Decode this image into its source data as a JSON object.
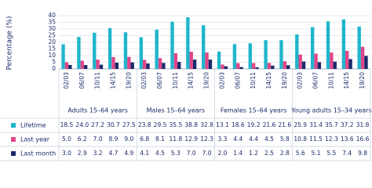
{
  "chart_data": {
    "type": "bar",
    "y_label": "Percentage (%)",
    "groups": [
      {
        "name": "Adults 15–64 years",
        "categories": [
          "02/03",
          "06/07",
          "10/11",
          "14/15",
          "19/20"
        ]
      },
      {
        "name": "Males 15–64 years",
        "categories": [
          "02/03",
          "06/07",
          "10/11",
          "14/15",
          "19/20"
        ]
      },
      {
        "name": "Females 15–64 years",
        "categories": [
          "02/03",
          "06/07",
          "10/11",
          "14/15",
          "19/20"
        ]
      },
      {
        "name": "Young adults 15–34 years",
        "categories": [
          "02/03",
          "06/07",
          "10/11",
          "14/15",
          "19/20"
        ]
      }
    ],
    "series": [
      {
        "name": "Lifetime",
        "color": "#1fb5cc",
        "values": [
          18.5,
          24.0,
          27.2,
          30.7,
          27.5,
          23.8,
          29.5,
          35.5,
          38.8,
          32.8,
          13.1,
          18.6,
          19.2,
          21.6,
          21.6,
          25.9,
          31.4,
          35.7,
          37.2,
          31.8
        ],
        "value_labels": [
          "18.5",
          "24.0",
          "27.2",
          "30.7",
          "27.5",
          "23.8",
          "29.5",
          "35.5",
          "38.8",
          "32.8",
          "13.1",
          "18.6",
          "19.2",
          "21.6",
          "21.6",
          "25.9",
          "31.4",
          "35.7",
          "37.2",
          "31.8"
        ]
      },
      {
        "name": "Last year",
        "color": "#e0468a",
        "values": [
          5.0,
          6.2,
          7.0,
          8.9,
          9.0,
          6.8,
          8.1,
          11.8,
          12.9,
          12.3,
          3.3,
          4.4,
          4.4,
          4.5,
          5.8,
          10.8,
          11.5,
          12.3,
          13.6,
          16.6
        ],
        "value_labels": [
          "5.0",
          "6.2",
          "7.0",
          "8.9",
          "9.0",
          "6.8",
          "8.1",
          "11.8",
          "12.9",
          "12.3",
          "3.3",
          "4.4",
          "4.4",
          "4.5",
          "5.8",
          "10.8",
          "11.5",
          "12.3",
          "13.6",
          "16.6"
        ]
      },
      {
        "name": "Last month",
        "color": "#1b2a6b",
        "values": [
          3.0,
          2.9,
          3.2,
          4.7,
          4.9,
          4.1,
          4.5,
          5.3,
          7.0,
          7.0,
          2.0,
          1.4,
          1.2,
          2.5,
          2.8,
          5.6,
          5.1,
          5.5,
          7.4,
          9.8
        ],
        "value_labels": [
          "3.0",
          "2.9",
          "3.2",
          "4.7",
          "4.9",
          "4.1",
          "4.5",
          "5.3",
          "7.0",
          "7.0",
          "2.0",
          "1.4",
          "1.2",
          "2.5",
          "2.8",
          "5.6",
          "5.1",
          "5.5",
          "7.4",
          "9.8"
        ]
      }
    ],
    "ylim": [
      0,
      40
    ],
    "yticks": [
      0,
      5,
      10,
      15,
      20,
      25,
      30,
      35,
      40
    ],
    "grid": true
  }
}
